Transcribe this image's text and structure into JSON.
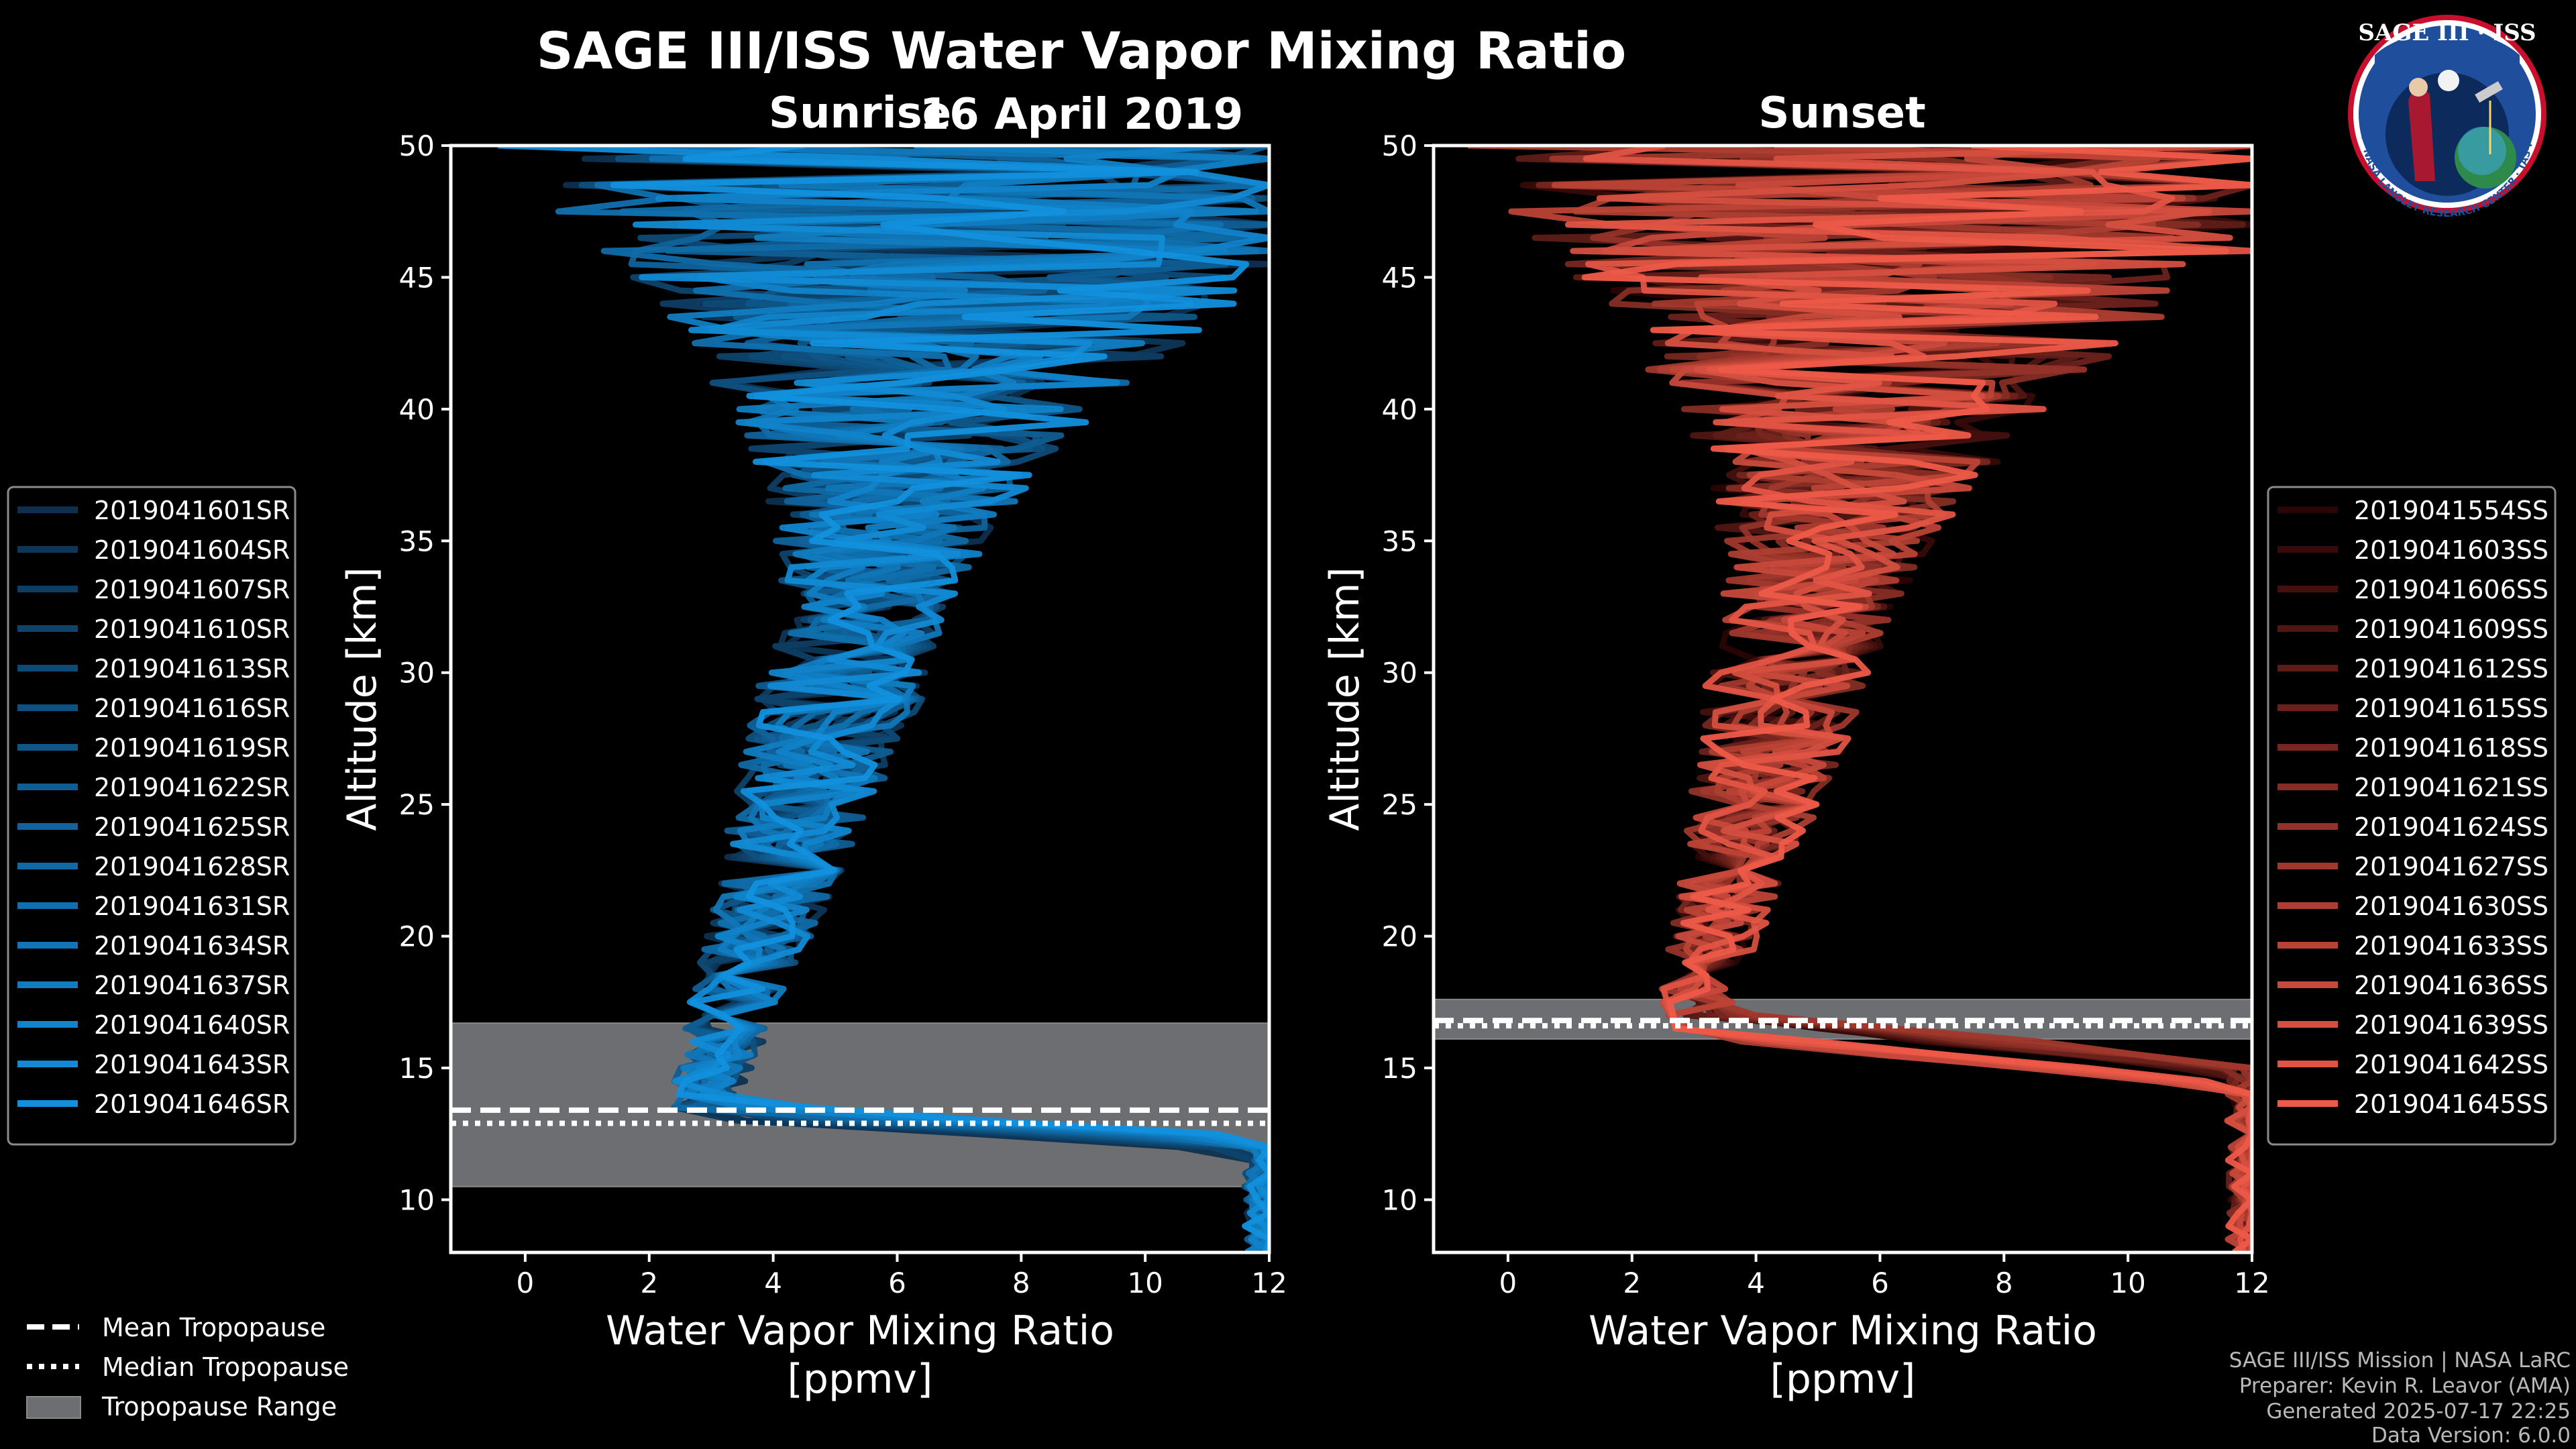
{
  "figure": {
    "title": "SAGE III/ISS Water Vapor Mixing Ratio",
    "date": "16 April 2019"
  },
  "logo": {
    "text": "SAGE III · ISS",
    "ring_text": "BALL · NASA LANGLEY RESEARCH CENTER · TAS-I · ESA"
  },
  "credits": {
    "line1": "SAGE III/ISS Mission | NASA LaRC",
    "line2": "Preparer: Kevin R. Leavor (AMA)",
    "line3": "Generated 2025-07-17 22:25",
    "line4": "Data Version: 6.0.0"
  },
  "bottom_legend": {
    "mean": "Mean Tropopause",
    "median": "Median Tropopause",
    "range": "Tropopause Range"
  },
  "chart_data": [
    {
      "type": "line",
      "title": "Sunrise",
      "xlabel": "Water Vapor Mixing Ratio\n[ppmv]",
      "ylabel": "Altitude [km]",
      "xlim": [
        -1.2,
        12
      ],
      "ylim": [
        8,
        50
      ],
      "xticks": [
        0,
        2,
        4,
        6,
        8,
        10,
        12
      ],
      "yticks": [
        10,
        15,
        20,
        25,
        30,
        35,
        40,
        45,
        50
      ],
      "tropopause": {
        "mean": 13.4,
        "median": 12.9,
        "range": [
          10.5,
          16.7
        ]
      },
      "colors": {
        "start": "#0d3050",
        "end": "#1290dd"
      },
      "profile": {
        "stratosphere_min": 2.8,
        "stratosphere_max": 5.2,
        "spread_top": 12,
        "surface_value": 12
      },
      "series": [
        {
          "name": "2019041601SR"
        },
        {
          "name": "2019041604SR"
        },
        {
          "name": "2019041607SR"
        },
        {
          "name": "2019041610SR"
        },
        {
          "name": "2019041613SR"
        },
        {
          "name": "2019041616SR"
        },
        {
          "name": "2019041619SR"
        },
        {
          "name": "2019041622SR"
        },
        {
          "name": "2019041625SR"
        },
        {
          "name": "2019041628SR"
        },
        {
          "name": "2019041631SR"
        },
        {
          "name": "2019041634SR"
        },
        {
          "name": "2019041637SR"
        },
        {
          "name": "2019041640SR"
        },
        {
          "name": "2019041643SR"
        },
        {
          "name": "2019041646SR"
        }
      ]
    },
    {
      "type": "line",
      "title": "Sunset",
      "xlabel": "Water Vapor Mixing Ratio\n[ppmv]",
      "ylabel": "Altitude [km]",
      "xlim": [
        -1.2,
        12
      ],
      "ylim": [
        8,
        50
      ],
      "xticks": [
        0,
        2,
        4,
        6,
        8,
        10,
        12
      ],
      "yticks": [
        10,
        15,
        20,
        25,
        30,
        35,
        40,
        45,
        50
      ],
      "tropopause": {
        "mean": 16.8,
        "median": 16.6,
        "range": [
          16.1,
          17.6
        ]
      },
      "colors": {
        "start": "#2a0505",
        "end": "#ee5a48"
      },
      "profile": {
        "stratosphere_min": 2.9,
        "stratosphere_max": 4.6,
        "spread_top": 12,
        "surface_value": 12
      },
      "series": [
        {
          "name": "2019041554SS"
        },
        {
          "name": "2019041603SS"
        },
        {
          "name": "2019041606SS"
        },
        {
          "name": "2019041609SS"
        },
        {
          "name": "2019041612SS"
        },
        {
          "name": "2019041615SS"
        },
        {
          "name": "2019041618SS"
        },
        {
          "name": "2019041621SS"
        },
        {
          "name": "2019041624SS"
        },
        {
          "name": "2019041627SS"
        },
        {
          "name": "2019041630SS"
        },
        {
          "name": "2019041633SS"
        },
        {
          "name": "2019041636SS"
        },
        {
          "name": "2019041639SS"
        },
        {
          "name": "2019041642SS"
        },
        {
          "name": "2019041645SS"
        }
      ]
    }
  ]
}
